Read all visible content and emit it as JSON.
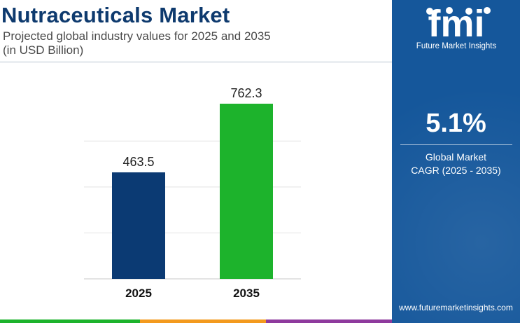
{
  "header": {
    "title": "Nutraceuticals Market",
    "subtitle_line1": "Projected global industry values for 2025 and 2035",
    "subtitle_line2": "(in USD Billion)"
  },
  "chart_data": {
    "type": "bar",
    "categories": [
      "2025",
      "2035"
    ],
    "values": [
      463.5,
      762.3
    ],
    "value_labels": [
      "463.5",
      "762.3"
    ],
    "bar_colors": [
      "#0b3a73",
      "#1db32c"
    ],
    "ylim": [
      0,
      800
    ],
    "grid": true,
    "title": "Nutraceuticals Market",
    "xlabel": "",
    "ylabel": ""
  },
  "side_panel": {
    "logo_letters": "fmi",
    "logo_text": "Future Market Insights",
    "cagr_value": "5.1%",
    "cagr_label_line1": "Global Market",
    "cagr_label_line2": "CAGR (2025 - 2035)",
    "website": "www.futuremarketinsights.com",
    "background_color": "#15579b"
  },
  "colors": {
    "title": "#0e3a6e",
    "stripe": [
      "#1db32c",
      "#f39a1e",
      "#8e3a9d"
    ]
  }
}
